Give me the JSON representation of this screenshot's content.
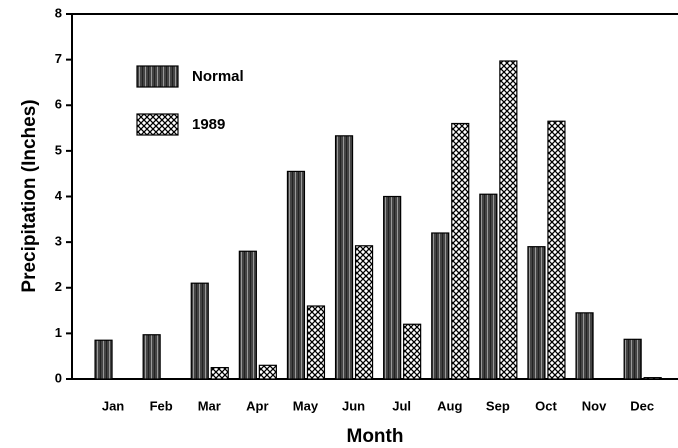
{
  "chart_data": {
    "type": "bar",
    "x_label": "Month",
    "y_label": "Precipitation (Inches)",
    "categories": [
      "Jan",
      "Feb",
      "Mar",
      "Apr",
      "May",
      "Jun",
      "Jul",
      "Aug",
      "Sep",
      "Oct",
      "Nov",
      "Dec"
    ],
    "series": [
      {
        "name": "Normal",
        "color": "#444444",
        "pattern": "stripes",
        "values": [
          0.85,
          0.97,
          2.1,
          2.8,
          4.55,
          5.33,
          4.0,
          3.2,
          4.05,
          2.9,
          1.45,
          0.87
        ]
      },
      {
        "name": "1989",
        "color": "#000000",
        "pattern": "crosshatch",
        "values": [
          0,
          0,
          0.25,
          0.3,
          1.6,
          2.92,
          1.2,
          5.6,
          6.97,
          5.65,
          0,
          0.03
        ]
      }
    ],
    "ylim": [
      0,
      8
    ],
    "yticks": [
      0,
      1,
      2,
      3,
      4,
      5,
      6,
      7,
      8
    ],
    "grid": false,
    "legend": "upper-left"
  }
}
